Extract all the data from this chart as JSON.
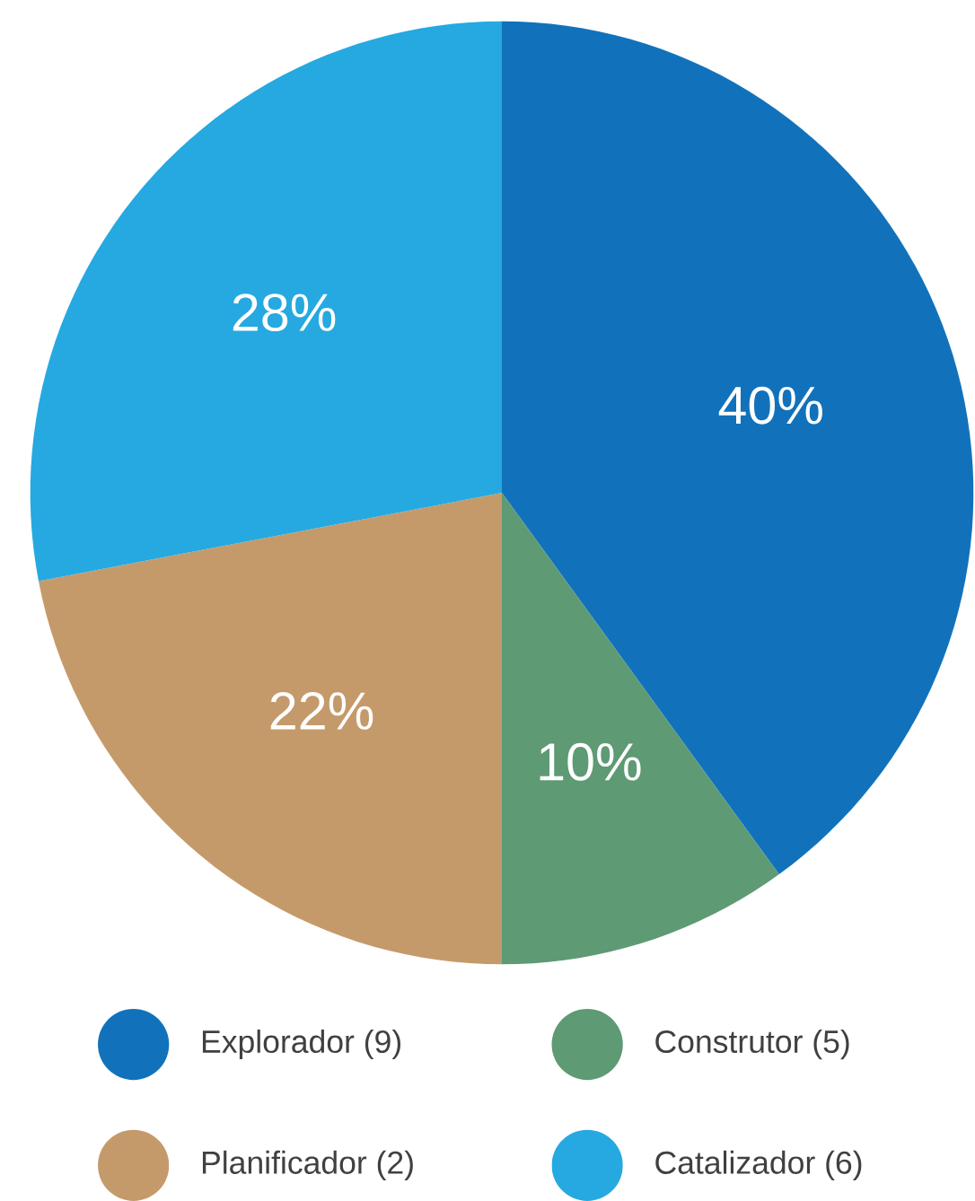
{
  "chart_data": {
    "type": "pie",
    "categories": [
      "Explorador (9)",
      "Construtor (5)",
      "Planificador (2)",
      "Catalizador (6)"
    ],
    "values": [
      40,
      10,
      22,
      28
    ],
    "value_labels": [
      "40%",
      "10%",
      "22%",
      "28%"
    ],
    "colors": [
      "#1172bb",
      "#5e9a74",
      "#c59a6b",
      "#25a9e0"
    ],
    "legend": "bottom"
  }
}
